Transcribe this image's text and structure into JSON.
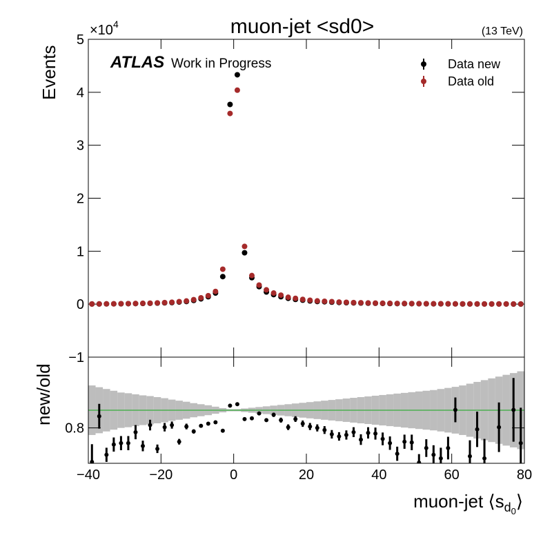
{
  "chart_data": {
    "type": "scatter",
    "title": "muon-jet <sd0>",
    "energy": "(13 TeV)",
    "experiment": "ATLAS",
    "status": "Work in Progress",
    "ylabel": "Events",
    "multiplier": "×10",
    "multiplier_exp": "4",
    "xlabel": "muon-jet ⟨s",
    "xlabel_sub": "d",
    "xlabel_subsub": "0",
    "xlabel_end": "⟩",
    "legend": "top-right",
    "xlim": [
      -40,
      80
    ],
    "xticks": [
      {
        "value": -40,
        "label": "−40"
      },
      {
        "value": -20,
        "label": "−20"
      },
      0,
      20,
      40,
      60,
      80
    ],
    "ylim": [
      -1,
      5
    ],
    "yticks": [
      {
        "value": -1,
        "label": "−1"
      },
      0,
      1,
      2,
      3,
      4,
      5
    ],
    "x": [
      -39,
      -37,
      -35,
      -33,
      -31,
      -29,
      -27,
      -25,
      -23,
      -21,
      -19,
      -17,
      -15,
      -13,
      -11,
      -9,
      -7,
      -5,
      -3,
      -1,
      1,
      3,
      5,
      7,
      9,
      11,
      13,
      15,
      17,
      19,
      21,
      23,
      25,
      27,
      29,
      31,
      33,
      35,
      37,
      39,
      41,
      43,
      45,
      47,
      49,
      51,
      53,
      55,
      57,
      59,
      61,
      63,
      65,
      67,
      69,
      71,
      73,
      75,
      77,
      79
    ],
    "series": [
      {
        "name": "Data new",
        "color": "#000000",
        "values": [
          0.003,
          0.004,
          0.005,
          0.006,
          0.007,
          0.009,
          0.011,
          0.013,
          0.016,
          0.02,
          0.025,
          0.03,
          0.04,
          0.05,
          0.07,
          0.1,
          0.14,
          0.21,
          0.52,
          3.77,
          4.33,
          0.97,
          0.5,
          0.33,
          0.23,
          0.18,
          0.14,
          0.11,
          0.09,
          0.075,
          0.06,
          0.05,
          0.045,
          0.038,
          0.032,
          0.028,
          0.024,
          0.021,
          0.018,
          0.016,
          0.014,
          0.012,
          0.011,
          0.01,
          0.009,
          0.008,
          0.007,
          0.006,
          0.006,
          0.005,
          0.005,
          0.004,
          0.004,
          0.004,
          0.003,
          0.003,
          0.003,
          0.003,
          0.002,
          0.002
        ]
      },
      {
        "name": "Data old",
        "color": "#a52a2a",
        "values": [
          0.004,
          0.005,
          0.006,
          0.007,
          0.009,
          0.011,
          0.013,
          0.016,
          0.019,
          0.024,
          0.03,
          0.037,
          0.048,
          0.06,
          0.085,
          0.12,
          0.16,
          0.24,
          0.66,
          3.6,
          4.04,
          1.09,
          0.54,
          0.36,
          0.27,
          0.21,
          0.17,
          0.13,
          0.11,
          0.09,
          0.074,
          0.062,
          0.055,
          0.048,
          0.04,
          0.035,
          0.03,
          0.027,
          0.023,
          0.02,
          0.018,
          0.016,
          0.014,
          0.013,
          0.012,
          0.01,
          0.009,
          0.008,
          0.008,
          0.007,
          0.006,
          0.006,
          0.005,
          0.005,
          0.004,
          0.004,
          0.004,
          0.004,
          0.003,
          0.003
        ]
      }
    ],
    "ratio": {
      "ylabel": "new/old",
      "ylim": [
        0.7,
        1.0
      ],
      "yticks": [
        0.8
      ],
      "hline": 0.85,
      "hline_color": "#4caf50",
      "values": [
        0.704,
        0.833,
        0.724,
        0.753,
        0.757,
        0.757,
        0.788,
        0.749,
        0.808,
        0.741,
        0.802,
        0.808,
        0.761,
        0.804,
        0.79,
        0.806,
        0.812,
        0.816,
        0.792,
        0.863,
        0.867,
        0.825,
        0.827,
        0.841,
        0.822,
        0.837,
        0.822,
        0.802,
        0.825,
        0.812,
        0.804,
        0.8,
        0.794,
        0.782,
        0.776,
        0.78,
        0.788,
        0.767,
        0.786,
        0.784,
        0.769,
        0.757,
        0.727,
        0.761,
        0.759,
        0.702,
        0.743,
        0.724,
        0.714,
        0.743,
        0.851,
        null,
        0.72,
        0.796,
        0.714,
        null,
        0.802,
        null,
        0.851,
        0.757
      ],
      "errors": [
        0.05,
        0.035,
        0.02,
        0.02,
        0.02,
        0.02,
        0.02,
        0.015,
        0.015,
        0.012,
        0.012,
        0.01,
        0.008,
        0.008,
        0.006,
        0.005,
        0.004,
        0.004,
        0.003,
        0.003,
        0.003,
        0.003,
        0.004,
        0.005,
        0.005,
        0.006,
        0.007,
        0.008,
        0.008,
        0.009,
        0.01,
        0.01,
        0.011,
        0.012,
        0.012,
        0.013,
        0.014,
        0.015,
        0.016,
        0.017,
        0.018,
        0.019,
        0.02,
        0.02,
        0.022,
        0.024,
        0.025,
        0.027,
        0.03,
        0.032,
        0.035,
        null,
        0.045,
        0.05,
        0.055,
        null,
        0.07,
        null,
        0.09,
        0.1
      ],
      "band": {
        "color": "#bdbdbd",
        "values": [
          0.07,
          0.065,
          0.06,
          0.055,
          0.05,
          0.048,
          0.045,
          0.042,
          0.04,
          0.037,
          0.034,
          0.03,
          0.027,
          0.024,
          0.02,
          0.017,
          0.014,
          0.01,
          0.006,
          0.003,
          0.003,
          0.005,
          0.007,
          0.009,
          0.011,
          0.013,
          0.015,
          0.017,
          0.019,
          0.021,
          0.023,
          0.025,
          0.027,
          0.029,
          0.031,
          0.033,
          0.035,
          0.037,
          0.039,
          0.041,
          0.043,
          0.045,
          0.047,
          0.049,
          0.051,
          0.053,
          0.055,
          0.057,
          0.06,
          0.063,
          0.066,
          0.07,
          0.075,
          0.08,
          0.085,
          0.09,
          0.095,
          0.1,
          0.105,
          0.11
        ]
      }
    }
  }
}
